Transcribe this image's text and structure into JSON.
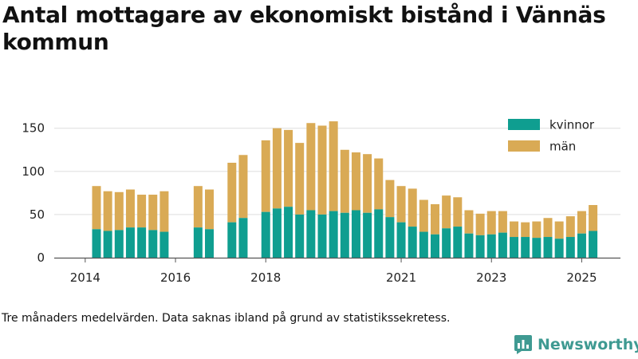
{
  "title": "Antal mottagare av ekonomiskt bistånd i Vännäs kommun",
  "note": "Tre månaders medelvärden. Data saknas ibland på grund av statistikssekretess.",
  "brand": {
    "name": "Newsworthy",
    "icon": "newsworthy-logo-icon",
    "color": "#3f9a92"
  },
  "chart_data": {
    "type": "bar",
    "stacked": true,
    "title": "Antal mottagare av ekonomiskt bistånd i Vännäs kommun",
    "xlabel": "",
    "ylabel": "",
    "ylim": [
      0,
      165
    ],
    "yticks": [
      0,
      50,
      100,
      150
    ],
    "xticks": [
      "2014",
      "2016",
      "2018",
      "2021",
      "2023",
      "2025"
    ],
    "grid": true,
    "legend_position": "top-right",
    "series": [
      {
        "name": "kvinnor",
        "color": "#0f9e90"
      },
      {
        "name": "män",
        "color": "#d9aa55"
      }
    ],
    "quarters": [
      {
        "period": "2014-Q1",
        "kvinnor": null,
        "man": null
      },
      {
        "period": "2014-Q2",
        "kvinnor": 33,
        "man": 50
      },
      {
        "period": "2014-Q3",
        "kvinnor": 31,
        "man": 46
      },
      {
        "period": "2014-Q4",
        "kvinnor": 32,
        "man": 44
      },
      {
        "period": "2015-Q1",
        "kvinnor": 35,
        "man": 44
      },
      {
        "period": "2015-Q2",
        "kvinnor": 35,
        "man": 38
      },
      {
        "period": "2015-Q3",
        "kvinnor": 32,
        "man": 41
      },
      {
        "period": "2015-Q4",
        "kvinnor": 30,
        "man": 47
      },
      {
        "period": "2016-Q1",
        "kvinnor": null,
        "man": null
      },
      {
        "period": "2016-Q2",
        "kvinnor": null,
        "man": null
      },
      {
        "period": "2016-Q3",
        "kvinnor": 35,
        "man": 48
      },
      {
        "period": "2016-Q4",
        "kvinnor": 33,
        "man": 46
      },
      {
        "period": "2017-Q1",
        "kvinnor": null,
        "man": null
      },
      {
        "period": "2017-Q2",
        "kvinnor": 41,
        "man": 69
      },
      {
        "period": "2017-Q3",
        "kvinnor": 46,
        "man": 73
      },
      {
        "period": "2017-Q4",
        "kvinnor": null,
        "man": null
      },
      {
        "period": "2018-Q1",
        "kvinnor": 53,
        "man": 83
      },
      {
        "period": "2018-Q2",
        "kvinnor": 57,
        "man": 93
      },
      {
        "period": "2018-Q3",
        "kvinnor": 59,
        "man": 89
      },
      {
        "period": "2018-Q4",
        "kvinnor": 50,
        "man": 83
      },
      {
        "period": "2019-Q1",
        "kvinnor": 55,
        "man": 101
      },
      {
        "period": "2019-Q2",
        "kvinnor": 50,
        "man": 103
      },
      {
        "period": "2019-Q3",
        "kvinnor": 54,
        "man": 104
      },
      {
        "period": "2019-Q4",
        "kvinnor": 52,
        "man": 73
      },
      {
        "period": "2020-Q1",
        "kvinnor": 55,
        "man": 67
      },
      {
        "period": "2020-Q2",
        "kvinnor": 52,
        "man": 68
      },
      {
        "period": "2020-Q3",
        "kvinnor": 56,
        "man": 59
      },
      {
        "period": "2020-Q4",
        "kvinnor": 47,
        "man": 43
      },
      {
        "period": "2021-Q1",
        "kvinnor": 41,
        "man": 42
      },
      {
        "period": "2021-Q2",
        "kvinnor": 36,
        "man": 44
      },
      {
        "period": "2021-Q3",
        "kvinnor": 30,
        "man": 37
      },
      {
        "period": "2021-Q4",
        "kvinnor": 27,
        "man": 35
      },
      {
        "period": "2022-Q1",
        "kvinnor": 34,
        "man": 38
      },
      {
        "period": "2022-Q2",
        "kvinnor": 36,
        "man": 34
      },
      {
        "period": "2022-Q3",
        "kvinnor": 28,
        "man": 27
      },
      {
        "period": "2022-Q4",
        "kvinnor": 26,
        "man": 25
      },
      {
        "period": "2023-Q1",
        "kvinnor": 27,
        "man": 27
      },
      {
        "period": "2023-Q2",
        "kvinnor": 29,
        "man": 25
      },
      {
        "period": "2023-Q3",
        "kvinnor": 24,
        "man": 18
      },
      {
        "period": "2023-Q4",
        "kvinnor": 24,
        "man": 17
      },
      {
        "period": "2024-Q1",
        "kvinnor": 23,
        "man": 19
      },
      {
        "period": "2024-Q2",
        "kvinnor": 24,
        "man": 22
      },
      {
        "period": "2024-Q3",
        "kvinnor": 22,
        "man": 20
      },
      {
        "period": "2024-Q4",
        "kvinnor": 24,
        "man": 24
      },
      {
        "period": "2025-Q1",
        "kvinnor": 28,
        "man": 26
      },
      {
        "period": "2025-Q2",
        "kvinnor": 31,
        "man": 30
      }
    ]
  }
}
